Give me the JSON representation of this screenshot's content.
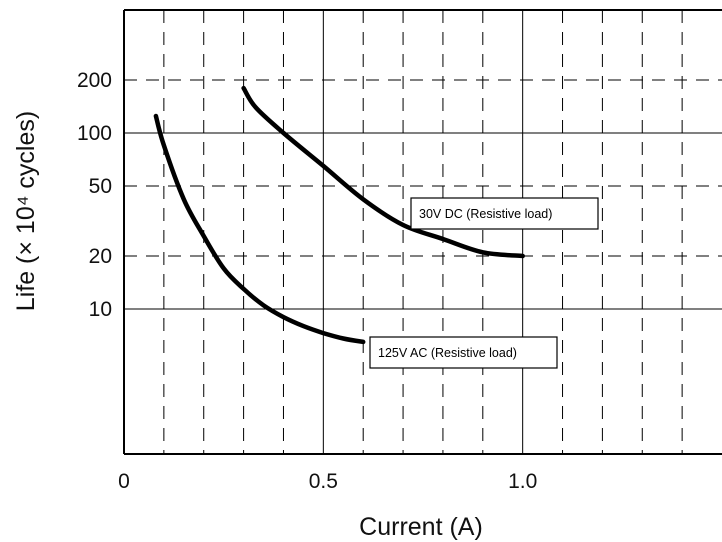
{
  "chart_data": {
    "type": "line",
    "title": "",
    "xlabel": "Current (A)",
    "ylabel": "Life (× 10⁴ cycles)",
    "x_axis": {
      "scale": "linear",
      "range": [
        0,
        1.5
      ],
      "ticks": [
        {
          "value": 0,
          "label": "0"
        },
        {
          "value": 0.5,
          "label": "0.5"
        },
        {
          "value": 1.0,
          "label": "1.0"
        }
      ],
      "major_gridlines": [
        0.5,
        1.0
      ],
      "minor_gridlines": [
        0.1,
        0.2,
        0.3,
        0.4,
        0.6,
        0.7,
        0.8,
        0.9,
        1.1,
        1.2,
        1.3,
        1.4
      ]
    },
    "y_axis": {
      "scale": "log",
      "range": [
        1.5,
        500
      ],
      "ticks": [
        {
          "value": 10,
          "label": "10"
        },
        {
          "value": 20,
          "label": "20"
        },
        {
          "value": 50,
          "label": "50"
        },
        {
          "value": 100,
          "label": "100"
        },
        {
          "value": 200,
          "label": "200"
        }
      ],
      "major_gridlines": [
        10,
        100
      ],
      "minor_gridlines": [
        20,
        50,
        200
      ]
    },
    "grid": true,
    "series": [
      {
        "name": "30V DC (Resistive load)",
        "x": [
          0.3,
          0.33,
          0.4,
          0.5,
          0.6,
          0.7,
          0.8,
          0.9,
          1.0
        ],
        "y": [
          180,
          140,
          100,
          65,
          42,
          30,
          25,
          21,
          20
        ]
      },
      {
        "name": "125V AC (Resistive load)",
        "x": [
          0.08,
          0.1,
          0.15,
          0.2,
          0.25,
          0.3,
          0.35,
          0.4,
          0.45,
          0.5,
          0.55,
          0.6
        ],
        "y": [
          125,
          85,
          42,
          26,
          17,
          13,
          10.5,
          9,
          8,
          7.3,
          6.8,
          6.5
        ]
      }
    ]
  }
}
